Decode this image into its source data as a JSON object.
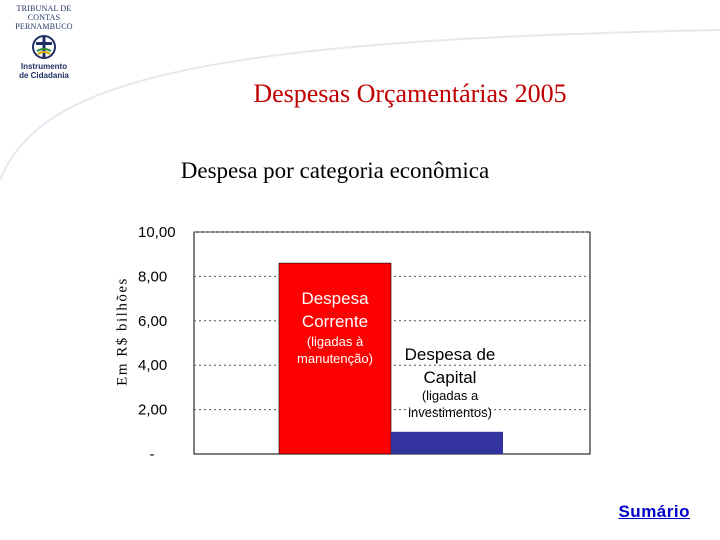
{
  "logo": {
    "court_line1": "TRIBUNAL DE CONTAS",
    "court_line2": "PERNAMBUCO",
    "tagline_line1": "Instrumento",
    "tagline_line2": "de Cidadania"
  },
  "header": {
    "title": "Despesas Orçamentárias 2005",
    "subtitle": "Despesa por categoria econômica"
  },
  "nav": {
    "summary_link": "Sumário"
  },
  "colors": {
    "title": "#c00000",
    "current": "#ff0000",
    "capital": "#3333a0",
    "link": "#0000cc"
  },
  "chart_data": {
    "type": "bar",
    "ylabel": "Em R$ bilhões",
    "ylim": [
      0,
      10
    ],
    "yticks": [
      "-",
      "2,00",
      "4,00",
      "6,00",
      "8,00",
      "10,00"
    ],
    "grid": true,
    "categories": [
      "Despesa Corrente",
      "Despesa de Capital"
    ],
    "values": [
      8.6,
      1.0
    ],
    "annotations": [
      {
        "title_lines": [
          "Despesa",
          "Corrente"
        ],
        "note_lines": [
          "(ligadas à",
          "manutenção)"
        ]
      },
      {
        "title_lines": [
          "Despesa de",
          "Capital"
        ],
        "note_lines": [
          "(ligadas a",
          "investimentos)"
        ]
      }
    ]
  }
}
